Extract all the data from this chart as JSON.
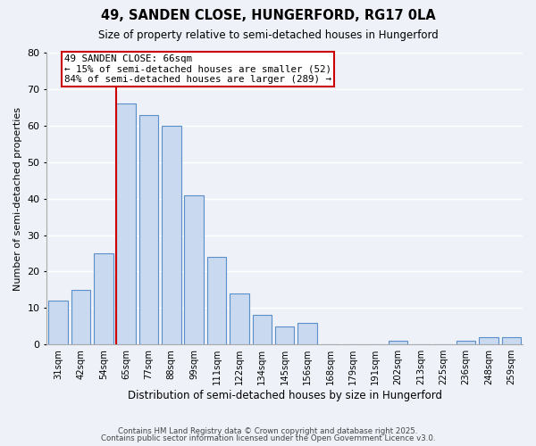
{
  "title": "49, SANDEN CLOSE, HUNGERFORD, RG17 0LA",
  "subtitle": "Size of property relative to semi-detached houses in Hungerford",
  "xlabel": "Distribution of semi-detached houses by size in Hungerford",
  "ylabel": "Number of semi-detached properties",
  "bin_labels": [
    "31sqm",
    "42sqm",
    "54sqm",
    "65sqm",
    "77sqm",
    "88sqm",
    "99sqm",
    "111sqm",
    "122sqm",
    "134sqm",
    "145sqm",
    "156sqm",
    "168sqm",
    "179sqm",
    "191sqm",
    "202sqm",
    "213sqm",
    "225sqm",
    "236sqm",
    "248sqm",
    "259sqm"
  ],
  "bar_heights": [
    12,
    15,
    25,
    66,
    63,
    60,
    41,
    24,
    14,
    8,
    5,
    6,
    0,
    0,
    0,
    1,
    0,
    0,
    1,
    2,
    2
  ],
  "bar_color": "#c9d9f0",
  "bar_edge_color": "#5b8fc9",
  "highlight_bin_index": 3,
  "ylim": [
    0,
    80
  ],
  "yticks": [
    0,
    10,
    20,
    30,
    40,
    50,
    60,
    70,
    80
  ],
  "annotation_text": "49 SANDEN CLOSE: 66sqm\n← 15% of semi-detached houses are smaller (52)\n84% of semi-detached houses are larger (289) →",
  "annotation_box_color": "#ffffff",
  "annotation_box_edge": "#cc0000",
  "background_color": "#eef2f8",
  "grid_color": "#ffffff",
  "footer_line1": "Contains HM Land Registry data © Crown copyright and database right 2025.",
  "footer_line2": "Contains public sector information licensed under the Open Government Licence v3.0."
}
